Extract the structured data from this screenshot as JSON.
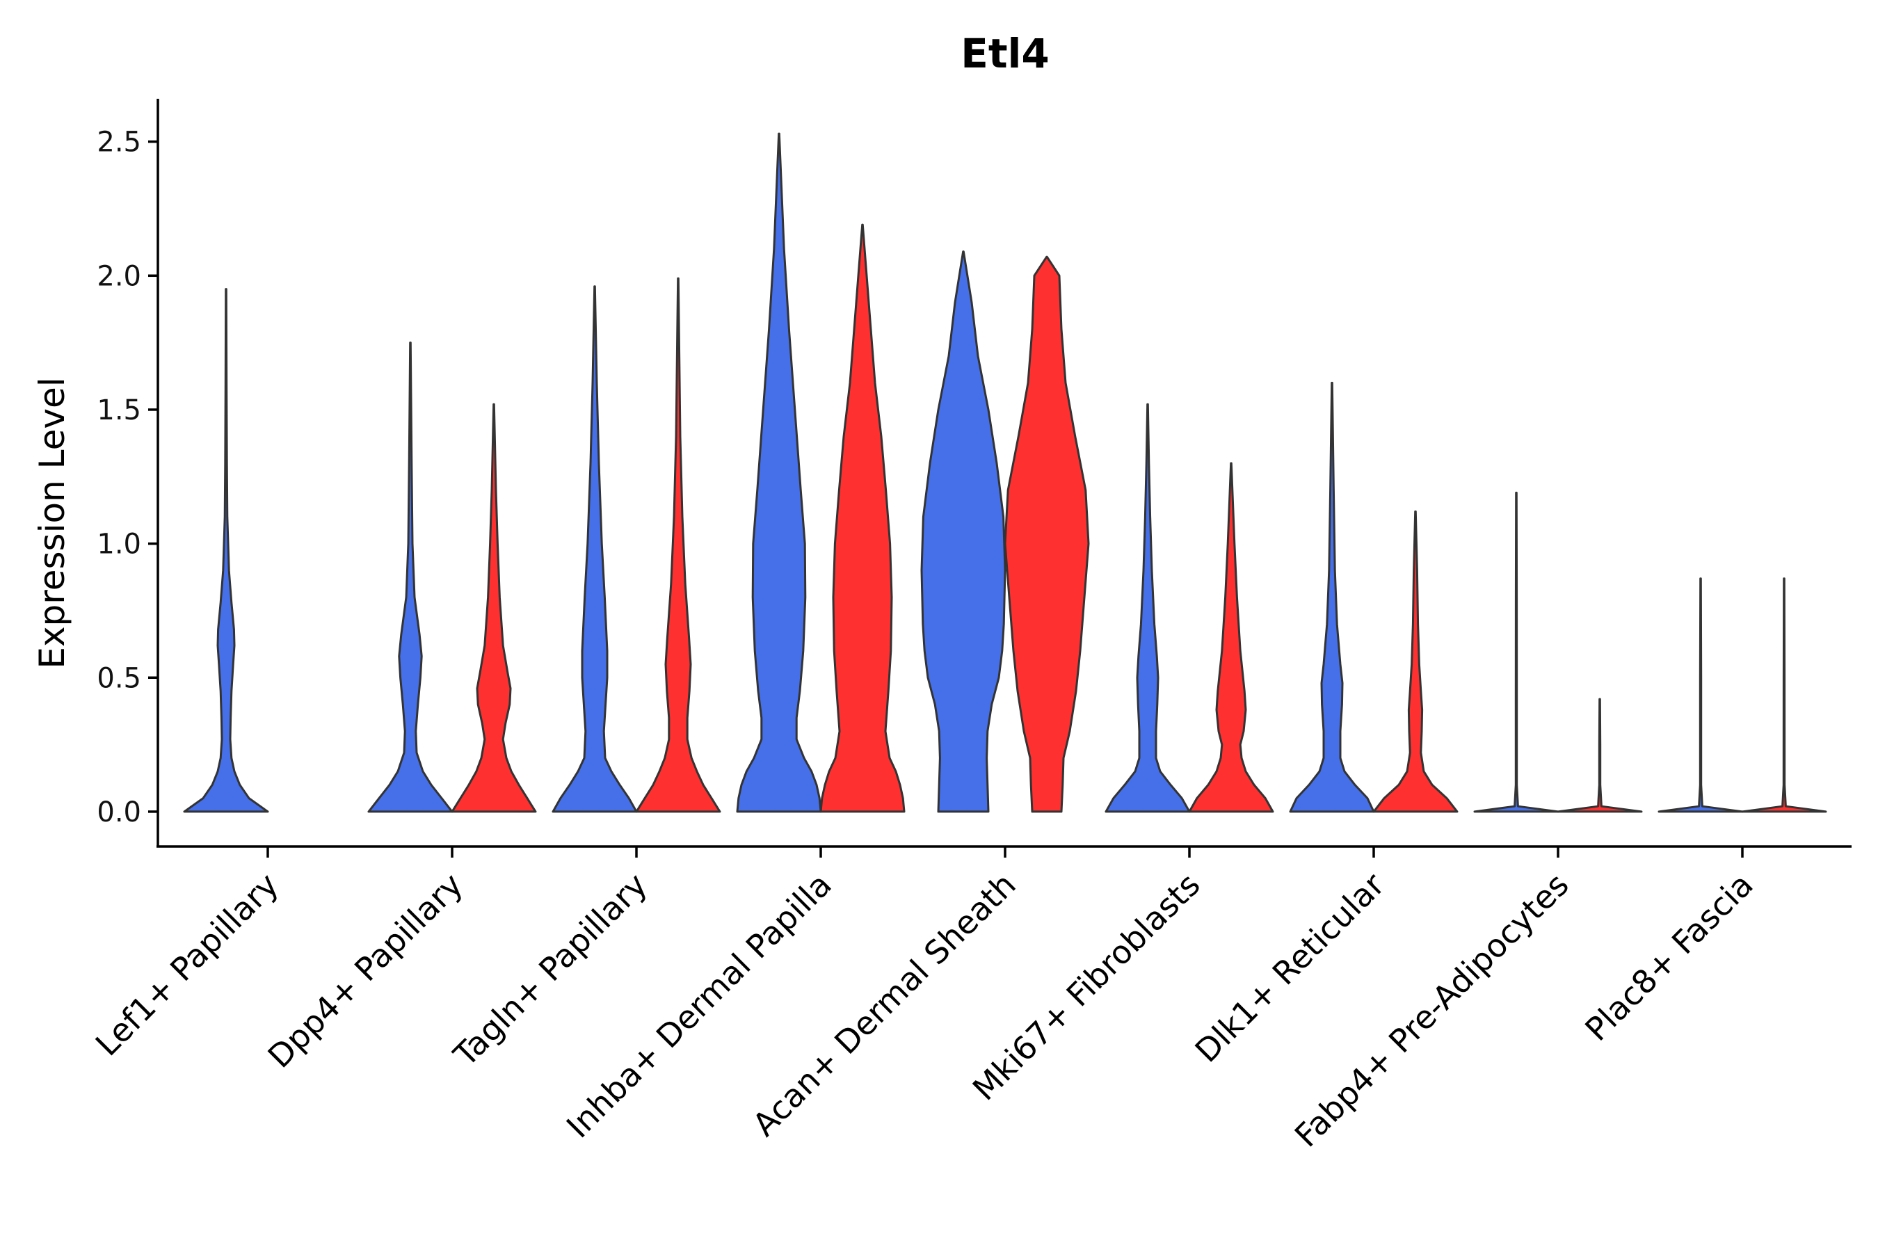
{
  "chart_data": {
    "type": "violin",
    "title": "Etl4",
    "xlabel": "",
    "ylabel": "Expression Level",
    "ylim": [
      -0.13,
      2.66
    ],
    "yticks": [
      "0.0",
      "0.5",
      "1.0",
      "1.5",
      "2.0",
      "2.5"
    ],
    "ytick_values": [
      0,
      0.5,
      1.0,
      1.5,
      2.0,
      2.5
    ],
    "colors": {
      "group_a": "#4570EA",
      "group_b": "#FF3030",
      "outline": "#333333"
    },
    "categories": [
      "Lef1+ Papillary",
      "Dpp4+ Papillary",
      "Tagln+ Papillary",
      "Inhba+ Dermal Papilla",
      "Acan+ Dermal Sheath",
      "Mki67+ Fibroblasts",
      "Dlk1+ Reticular",
      "Fabp4+ Pre-Adipocytes",
      "Plac8+ Fascia"
    ],
    "violins": [
      {
        "category": "Lef1+ Papillary",
        "group": "a",
        "max": 1.95,
        "profile": [
          [
            0.0,
            1.0
          ],
          [
            0.05,
            0.55
          ],
          [
            0.1,
            0.33
          ],
          [
            0.15,
            0.2
          ],
          [
            0.2,
            0.13
          ],
          [
            0.27,
            0.1
          ],
          [
            0.35,
            0.11
          ],
          [
            0.45,
            0.13
          ],
          [
            0.55,
            0.17
          ],
          [
            0.62,
            0.2
          ],
          [
            0.68,
            0.19
          ],
          [
            0.78,
            0.13
          ],
          [
            0.9,
            0.07
          ],
          [
            1.1,
            0.03
          ],
          [
            1.3,
            0.02
          ],
          [
            1.6,
            0.012
          ],
          [
            1.95,
            0.005
          ]
        ]
      },
      {
        "category": "Dpp4+ Papillary",
        "group": "a",
        "max": 1.75,
        "profile": [
          [
            0.0,
            1.0
          ],
          [
            0.05,
            0.75
          ],
          [
            0.1,
            0.5
          ],
          [
            0.15,
            0.3
          ],
          [
            0.22,
            0.15
          ],
          [
            0.3,
            0.13
          ],
          [
            0.4,
            0.18
          ],
          [
            0.5,
            0.24
          ],
          [
            0.58,
            0.27
          ],
          [
            0.66,
            0.22
          ],
          [
            0.8,
            0.1
          ],
          [
            1.0,
            0.05
          ],
          [
            1.3,
            0.03
          ],
          [
            1.75,
            0.005
          ]
        ]
      },
      {
        "category": "Dpp4+ Papillary",
        "group": "b",
        "max": 1.52,
        "profile": [
          [
            0.0,
            1.0
          ],
          [
            0.05,
            0.8
          ],
          [
            0.1,
            0.6
          ],
          [
            0.15,
            0.42
          ],
          [
            0.2,
            0.3
          ],
          [
            0.27,
            0.22
          ],
          [
            0.33,
            0.28
          ],
          [
            0.4,
            0.38
          ],
          [
            0.46,
            0.4
          ],
          [
            0.52,
            0.33
          ],
          [
            0.62,
            0.22
          ],
          [
            0.8,
            0.14
          ],
          [
            1.0,
            0.09
          ],
          [
            1.2,
            0.05
          ],
          [
            1.52,
            0.005
          ]
        ]
      },
      {
        "category": "Tagln+ Papillary",
        "group": "a",
        "max": 1.96,
        "profile": [
          [
            0.0,
            1.0
          ],
          [
            0.05,
            0.82
          ],
          [
            0.1,
            0.6
          ],
          [
            0.15,
            0.4
          ],
          [
            0.2,
            0.25
          ],
          [
            0.3,
            0.22
          ],
          [
            0.4,
            0.26
          ],
          [
            0.5,
            0.3
          ],
          [
            0.6,
            0.3
          ],
          [
            0.8,
            0.24
          ],
          [
            1.0,
            0.17
          ],
          [
            1.3,
            0.1
          ],
          [
            1.6,
            0.05
          ],
          [
            1.96,
            0.005
          ]
        ]
      },
      {
        "category": "Tagln+ Papillary",
        "group": "b",
        "max": 1.99,
        "profile": [
          [
            0.0,
            1.0
          ],
          [
            0.05,
            0.8
          ],
          [
            0.1,
            0.6
          ],
          [
            0.15,
            0.45
          ],
          [
            0.2,
            0.32
          ],
          [
            0.27,
            0.22
          ],
          [
            0.35,
            0.22
          ],
          [
            0.45,
            0.27
          ],
          [
            0.55,
            0.3
          ],
          [
            0.65,
            0.26
          ],
          [
            0.85,
            0.17
          ],
          [
            1.1,
            0.1
          ],
          [
            1.4,
            0.05
          ],
          [
            1.99,
            0.005
          ]
        ]
      },
      {
        "category": "Inhba+ Dermal Papilla",
        "group": "a",
        "max": 2.53,
        "profile": [
          [
            0.0,
            1.0
          ],
          [
            0.05,
            0.97
          ],
          [
            0.1,
            0.9
          ],
          [
            0.15,
            0.78
          ],
          [
            0.2,
            0.6
          ],
          [
            0.27,
            0.42
          ],
          [
            0.35,
            0.42
          ],
          [
            0.45,
            0.5
          ],
          [
            0.6,
            0.58
          ],
          [
            0.8,
            0.63
          ],
          [
            1.0,
            0.62
          ],
          [
            1.2,
            0.52
          ],
          [
            1.5,
            0.38
          ],
          [
            1.8,
            0.24
          ],
          [
            2.1,
            0.12
          ],
          [
            2.4,
            0.04
          ],
          [
            2.53,
            0.005
          ]
        ]
      },
      {
        "category": "Inhba+ Dermal Papilla",
        "group": "b",
        "max": 2.19,
        "profile": [
          [
            0.0,
            1.0
          ],
          [
            0.05,
            0.97
          ],
          [
            0.1,
            0.9
          ],
          [
            0.15,
            0.8
          ],
          [
            0.2,
            0.65
          ],
          [
            0.3,
            0.55
          ],
          [
            0.45,
            0.62
          ],
          [
            0.6,
            0.68
          ],
          [
            0.8,
            0.7
          ],
          [
            1.0,
            0.66
          ],
          [
            1.2,
            0.56
          ],
          [
            1.4,
            0.45
          ],
          [
            1.6,
            0.3
          ],
          [
            1.8,
            0.2
          ],
          [
            2.0,
            0.1
          ],
          [
            2.19,
            0.005
          ]
        ]
      },
      {
        "category": "Acan+ Dermal Sheath",
        "group": "a",
        "max": 2.09,
        "profile": [
          [
            0.0,
            0.6
          ],
          [
            0.1,
            0.58
          ],
          [
            0.2,
            0.56
          ],
          [
            0.3,
            0.58
          ],
          [
            0.4,
            0.68
          ],
          [
            0.5,
            0.85
          ],
          [
            0.6,
            0.93
          ],
          [
            0.7,
            0.97
          ],
          [
            0.9,
            1.0
          ],
          [
            1.1,
            0.96
          ],
          [
            1.3,
            0.8
          ],
          [
            1.5,
            0.6
          ],
          [
            1.7,
            0.35
          ],
          [
            1.9,
            0.2
          ],
          [
            2.09,
            0.005
          ]
        ]
      },
      {
        "category": "Acan+ Dermal Sheath",
        "group": "b",
        "max": 2.07,
        "profile": [
          [
            0.0,
            0.35
          ],
          [
            0.1,
            0.38
          ],
          [
            0.2,
            0.4
          ],
          [
            0.3,
            0.55
          ],
          [
            0.45,
            0.7
          ],
          [
            0.6,
            0.8
          ],
          [
            0.8,
            0.9
          ],
          [
            1.0,
            1.0
          ],
          [
            1.2,
            0.93
          ],
          [
            1.4,
            0.68
          ],
          [
            1.6,
            0.45
          ],
          [
            1.8,
            0.35
          ],
          [
            2.0,
            0.3
          ],
          [
            2.07,
            0.005
          ]
        ]
      },
      {
        "category": "Mki67+ Fibroblasts",
        "group": "a",
        "max": 1.52,
        "profile": [
          [
            0.0,
            1.0
          ],
          [
            0.05,
            0.82
          ],
          [
            0.1,
            0.55
          ],
          [
            0.15,
            0.3
          ],
          [
            0.2,
            0.2
          ],
          [
            0.3,
            0.2
          ],
          [
            0.4,
            0.23
          ],
          [
            0.5,
            0.25
          ],
          [
            0.58,
            0.22
          ],
          [
            0.7,
            0.16
          ],
          [
            0.9,
            0.1
          ],
          [
            1.1,
            0.06
          ],
          [
            1.3,
            0.03
          ],
          [
            1.52,
            0.005
          ]
        ]
      },
      {
        "category": "Mki67+ Fibroblasts",
        "group": "b",
        "max": 1.3,
        "profile": [
          [
            0.0,
            1.0
          ],
          [
            0.05,
            0.82
          ],
          [
            0.1,
            0.55
          ],
          [
            0.15,
            0.35
          ],
          [
            0.2,
            0.25
          ],
          [
            0.25,
            0.22
          ],
          [
            0.3,
            0.3
          ],
          [
            0.38,
            0.35
          ],
          [
            0.45,
            0.32
          ],
          [
            0.6,
            0.22
          ],
          [
            0.8,
            0.14
          ],
          [
            1.0,
            0.08
          ],
          [
            1.3,
            0.005
          ]
        ]
      },
      {
        "category": "Dlk1+ Reticular",
        "group": "a",
        "max": 1.6,
        "profile": [
          [
            0.0,
            1.0
          ],
          [
            0.05,
            0.85
          ],
          [
            0.1,
            0.55
          ],
          [
            0.15,
            0.3
          ],
          [
            0.2,
            0.2
          ],
          [
            0.3,
            0.2
          ],
          [
            0.4,
            0.24
          ],
          [
            0.48,
            0.25
          ],
          [
            0.55,
            0.2
          ],
          [
            0.7,
            0.12
          ],
          [
            0.9,
            0.07
          ],
          [
            1.2,
            0.04
          ],
          [
            1.6,
            0.005
          ]
        ]
      },
      {
        "category": "Dlk1+ Reticular",
        "group": "b",
        "max": 1.12,
        "profile": [
          [
            0.0,
            1.0
          ],
          [
            0.05,
            0.75
          ],
          [
            0.1,
            0.4
          ],
          [
            0.15,
            0.2
          ],
          [
            0.22,
            0.13
          ],
          [
            0.3,
            0.15
          ],
          [
            0.38,
            0.16
          ],
          [
            0.45,
            0.13
          ],
          [
            0.55,
            0.09
          ],
          [
            0.7,
            0.06
          ],
          [
            0.9,
            0.04
          ],
          [
            1.12,
            0.005
          ]
        ]
      },
      {
        "category": "Fabp4+ Pre-Adipocytes",
        "group": "a",
        "max": 1.19,
        "profile": [
          [
            0.0,
            1.0
          ],
          [
            0.02,
            0.04
          ],
          [
            0.1,
            0.012
          ],
          [
            0.4,
            0.012
          ],
          [
            0.8,
            0.01
          ],
          [
            1.19,
            0.005
          ]
        ]
      },
      {
        "category": "Fabp4+ Pre-Adipocytes",
        "group": "b",
        "max": 0.42,
        "profile": [
          [
            0.0,
            1.0
          ],
          [
            0.02,
            0.04
          ],
          [
            0.1,
            0.012
          ],
          [
            0.25,
            0.012
          ],
          [
            0.42,
            0.005
          ]
        ]
      },
      {
        "category": "Plac8+ Fascia",
        "group": "a",
        "max": 0.87,
        "profile": [
          [
            0.0,
            1.0
          ],
          [
            0.02,
            0.04
          ],
          [
            0.1,
            0.012
          ],
          [
            0.5,
            0.012
          ],
          [
            0.87,
            0.005
          ]
        ]
      },
      {
        "category": "Plac8+ Fascia",
        "group": "b",
        "max": 0.87,
        "profile": [
          [
            0.0,
            1.0
          ],
          [
            0.02,
            0.04
          ],
          [
            0.1,
            0.012
          ],
          [
            0.5,
            0.01
          ],
          [
            0.87,
            0.005
          ]
        ]
      }
    ]
  }
}
